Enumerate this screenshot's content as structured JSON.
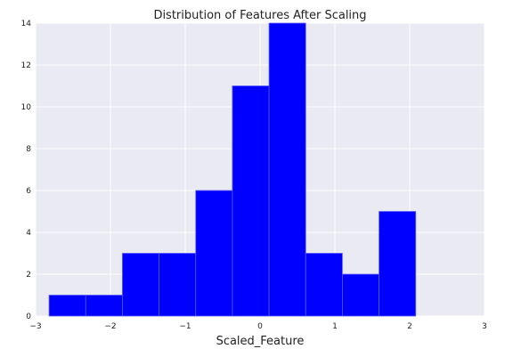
{
  "chart_data": {
    "type": "bar",
    "title": "Distribution of Features After Scaling",
    "xlabel": "Scaled_Feature",
    "ylabel": "",
    "xlim": [
      -3,
      3
    ],
    "ylim": [
      0,
      14
    ],
    "xticks": [
      -3,
      -2,
      -1,
      0,
      1,
      2,
      3
    ],
    "yticks": [
      0,
      2,
      4,
      6,
      8,
      10,
      12,
      14
    ],
    "grid": true,
    "bins": [
      {
        "start": -2.82,
        "end": -2.33,
        "count": 1
      },
      {
        "start": -2.33,
        "end": -1.84,
        "count": 1
      },
      {
        "start": -1.84,
        "end": -1.35,
        "count": 3
      },
      {
        "start": -1.35,
        "end": -0.86,
        "count": 3
      },
      {
        "start": -0.86,
        "end": -0.37,
        "count": 6
      },
      {
        "start": -0.37,
        "end": 0.12,
        "count": 11
      },
      {
        "start": 0.12,
        "end": 0.61,
        "count": 14
      },
      {
        "start": 0.61,
        "end": 1.1,
        "count": 3
      },
      {
        "start": 1.1,
        "end": 1.59,
        "count": 2
      },
      {
        "start": 1.59,
        "end": 2.08,
        "count": 5
      }
    ],
    "colors": {
      "bar": "#0000ff",
      "bar_edge": "#5a5aff",
      "background": "#eaeaf2",
      "grid": "#ffffff",
      "text": "#222222"
    }
  }
}
